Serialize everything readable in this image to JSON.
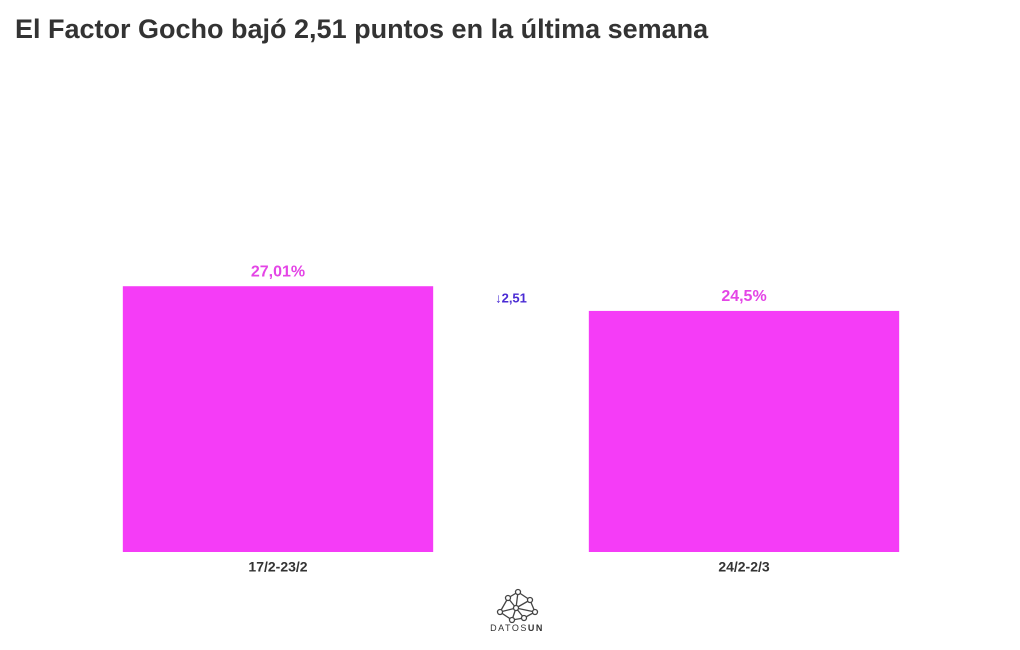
{
  "chart_data": {
    "type": "bar",
    "title": "El Factor Gocho bajó 2,51 puntos en la última semana",
    "categories": [
      "17/2-23/2",
      "24/2-2/3"
    ],
    "values": [
      27.01,
      24.5
    ],
    "value_labels": [
      "27,01%",
      "24,5%"
    ],
    "color": "#f53cf7",
    "label_color": "#e445e6",
    "annotation": "↓2,51",
    "annotation_color": "#4a2bd4",
    "ylim": [
      0,
      50
    ]
  },
  "logo": {
    "text": "DATOS",
    "bold": "UN"
  }
}
